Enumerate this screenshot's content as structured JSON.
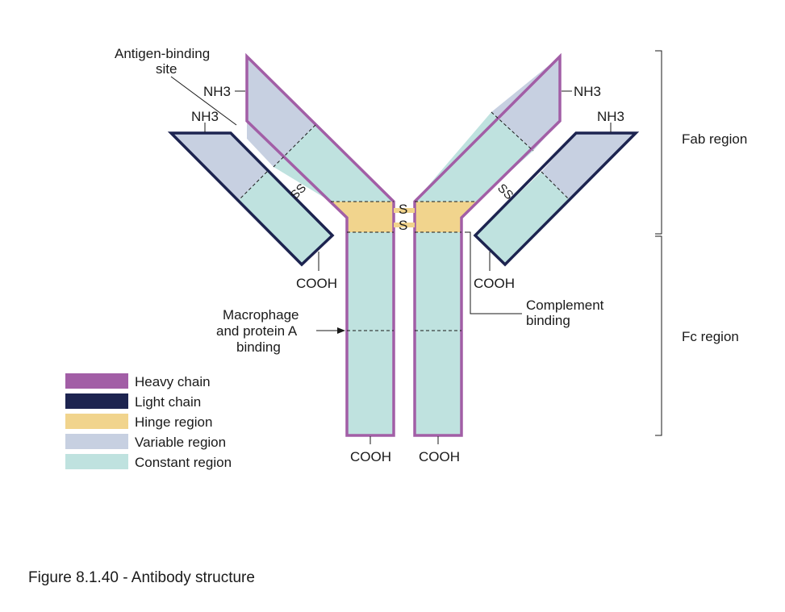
{
  "colors": {
    "heavy_chain": "#a25ea6",
    "light_chain": "#1d2450",
    "hinge_region": "#f1d48d",
    "variable_region": "#c7d0e1",
    "constant_region": "#bfe2df"
  },
  "labels": {
    "antigen_site_line1": "Antigen-binding",
    "antigen_site_line2": "site",
    "nh3": "NH3",
    "cooh": "COOH",
    "ss": "SS",
    "s": "S",
    "macrophage_line1": "Macrophage",
    "macrophage_line2": "and protein A",
    "macrophage_line3": "binding",
    "complement_line1": "Complement",
    "complement_line2": "binding",
    "fab_region": "Fab region",
    "fc_region": "Fc region"
  },
  "legend": [
    {
      "label": "Heavy chain",
      "color": "#a25ea6"
    },
    {
      "label": "Light chain",
      "color": "#1d2450"
    },
    {
      "label": "Hinge region",
      "color": "#f1d48d"
    },
    {
      "label": "Variable region",
      "color": "#c7d0e1"
    },
    {
      "label": "Constant region",
      "color": "#bfe2df"
    }
  ],
  "caption": "Figure 8.1.40 - Antibody structure"
}
